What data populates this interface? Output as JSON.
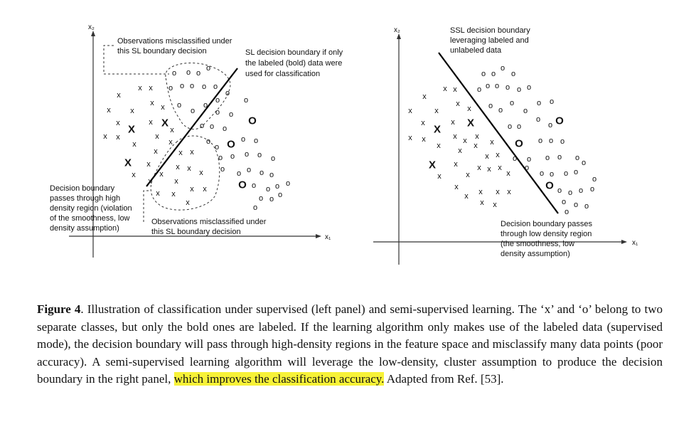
{
  "left_panel": {
    "y_axis_label": "x₂",
    "x_axis_label": "x₁",
    "misclassified_top_label": [
      "Observations misclassified under",
      "this SL boundary decision"
    ],
    "boundary_label": [
      "SL decision boundary if only",
      "the labeled (bold) data were",
      "used for classification"
    ],
    "high_density_label": [
      "Decision boundary",
      "passes through high",
      "density region (violation",
      "of the smoothness, low",
      "density assumption)"
    ],
    "misclassified_bottom_label": [
      "Observations misclassified under",
      "this SL boundary decision"
    ]
  },
  "right_panel": {
    "y_axis_label": "x₂",
    "x_axis_label": "x₁",
    "boundary_label": [
      "SSL decision boundary",
      "leveraging labeled and",
      "unlabeled data"
    ],
    "low_density_label": [
      "Decision boundary passes",
      "through low density region",
      "(the smoothness, low",
      "density assumption)"
    ]
  },
  "symbols": {
    "class_x": "x",
    "class_o": "o",
    "labeled_x": "X",
    "labeled_o": "O"
  },
  "caption": {
    "figure_label": "Figure 4",
    "text_before": ". Illustration of classification under supervised (left panel) and semi-supervised learning. The ‘x’ and ‘o’ belong to two separate classes, but only the bold ones are labeled. If the learning algorithm only makes use of the labeled data (supervised mode), the decision boundary will pass through high-density regions in the feature space and misclassify many data points (poor accuracy). A semi-supervised learning algorithm will leverage the low-density, cluster assumption to produce the decision boundary in the right panel, ",
    "highlighted": "which improves the classification accuracy.",
    "text_after": " Adapted from Ref. [53]."
  },
  "colors": {
    "highlight": "#f7f238",
    "ink": "#111111"
  }
}
